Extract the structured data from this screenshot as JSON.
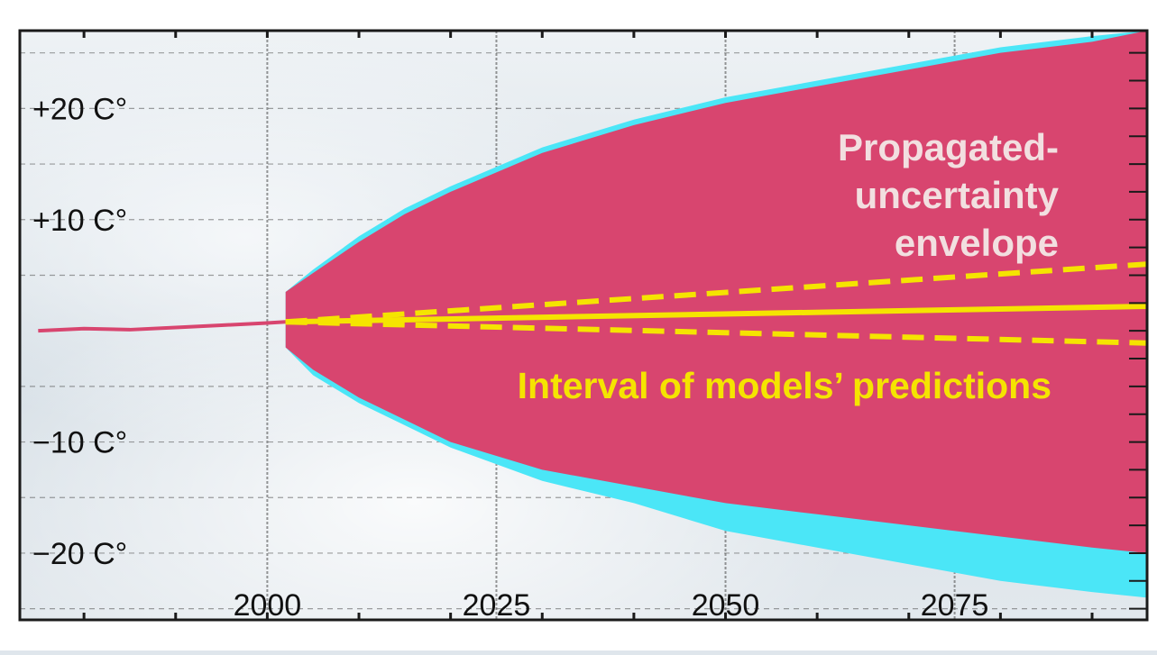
{
  "chart_data": {
    "type": "area",
    "title": "",
    "xlabel": "",
    "ylabel": "",
    "xlim": [
      1973,
      2096
    ],
    "ylim": [
      -26,
      27
    ],
    "grid": true,
    "x_ticks": [
      {
        "value": 2000,
        "label": "2000"
      },
      {
        "value": 2025,
        "label": "2025"
      },
      {
        "value": 2050,
        "label": "2050"
      },
      {
        "value": 2075,
        "label": "2075"
      }
    ],
    "y_ticks": [
      {
        "value": 20,
        "label": "+20 C°"
      },
      {
        "value": 10,
        "label": "+10 C°"
      },
      {
        "value": -10,
        "label": "−10 C°"
      },
      {
        "value": -20,
        "label": "−20 C°"
      }
    ],
    "colors": {
      "observed": "#d8456f",
      "envelope": "#d8456f",
      "envelope_edge": "#4be6f7",
      "models": "#f5e400",
      "grid": "#555555"
    },
    "series": [
      {
        "kind": "observed",
        "x": [
          1975,
          1980,
          1985,
          1990,
          1995,
          2000,
          2002
        ],
        "values": [
          0,
          0.2,
          0.1,
          0.3,
          0.5,
          0.7,
          0.8
        ]
      },
      {
        "kind": "envelope_outer",
        "x": [
          2002,
          2005,
          2010,
          2015,
          2020,
          2030,
          2040,
          2050,
          2060,
          2070,
          2080,
          2090,
          2096
        ],
        "upper": [
          3.5,
          5.5,
          8.5,
          11,
          13,
          16.5,
          19,
          21,
          22.5,
          24,
          25.5,
          26.5,
          27
        ],
        "lower": [
          -1.5,
          -4,
          -6.5,
          -8.5,
          -10.5,
          -13.5,
          -15.5,
          -18,
          -19.5,
          -21,
          -22.5,
          -23.5,
          -24
        ]
      },
      {
        "kind": "envelope_inner",
        "x": [
          2002,
          2005,
          2010,
          2015,
          2020,
          2030,
          2040,
          2050,
          2060,
          2070,
          2080,
          2090,
          2096
        ],
        "upper": [
          3.5,
          5.2,
          8,
          10.5,
          12.5,
          16,
          18.5,
          20.5,
          22,
          23.5,
          25,
          26,
          27
        ],
        "lower": [
          -1.5,
          -3.5,
          -6,
          -8,
          -10,
          -12.5,
          -14,
          -15.5,
          -16.5,
          -17.5,
          -18.5,
          -19.5,
          -20
        ]
      },
      {
        "kind": "models_mean",
        "x": [
          2002,
          2096
        ],
        "values": [
          0.8,
          2.2
        ]
      },
      {
        "kind": "models_upper",
        "x": [
          2002,
          2096
        ],
        "values": [
          0.8,
          6.0
        ]
      },
      {
        "kind": "models_lower",
        "x": [
          2002,
          2096
        ],
        "values": [
          0.8,
          -1.1
        ]
      }
    ],
    "annotations": {
      "envelope_label": [
        "Propagated-",
        "uncertainty",
        "envelope"
      ],
      "models_label": "Interval of models’ predictions"
    }
  }
}
